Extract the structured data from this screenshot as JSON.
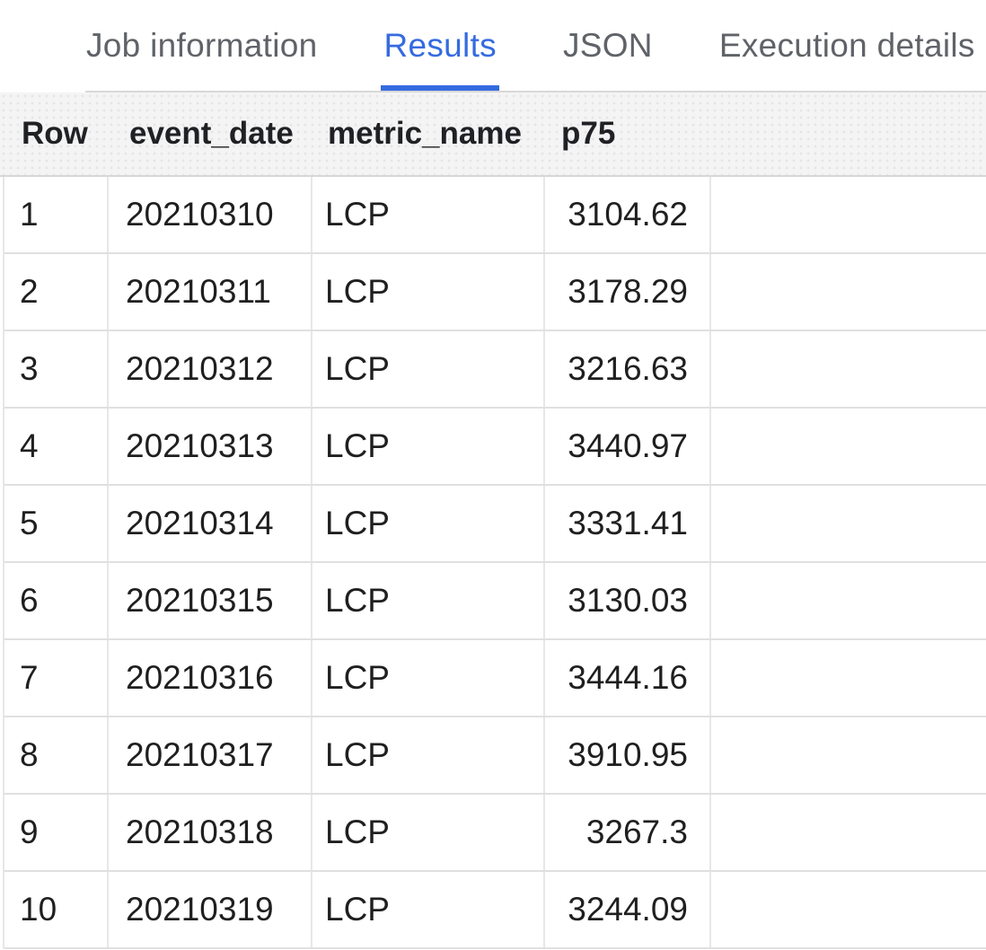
{
  "tabs": [
    {
      "label": "Job information",
      "active": false
    },
    {
      "label": "Results",
      "active": true
    },
    {
      "label": "JSON",
      "active": false
    },
    {
      "label": "Execution details",
      "active": false
    }
  ],
  "table": {
    "columns": [
      "Row",
      "event_date",
      "metric_name",
      "p75"
    ],
    "rows": [
      [
        "1",
        "20210310",
        "LCP",
        "3104.62"
      ],
      [
        "2",
        "20210311",
        "LCP",
        "3178.29"
      ],
      [
        "3",
        "20210312",
        "LCP",
        "3216.63"
      ],
      [
        "4",
        "20210313",
        "LCP",
        "3440.97"
      ],
      [
        "5",
        "20210314",
        "LCP",
        "3331.41"
      ],
      [
        "6",
        "20210315",
        "LCP",
        "3130.03"
      ],
      [
        "7",
        "20210316",
        "LCP",
        "3444.16"
      ],
      [
        "8",
        "20210317",
        "LCP",
        "3910.95"
      ],
      [
        "9",
        "20210318",
        "LCP",
        "3267.3"
      ],
      [
        "10",
        "20210319",
        "LCP",
        "3244.09"
      ]
    ]
  },
  "colors": {
    "active_tab": "#356be0",
    "inactive_tab": "#5f6368",
    "header_background": "#f4f4f5",
    "row_divider": "#e0e0e0",
    "cell_text": "#1f1f1f"
  }
}
